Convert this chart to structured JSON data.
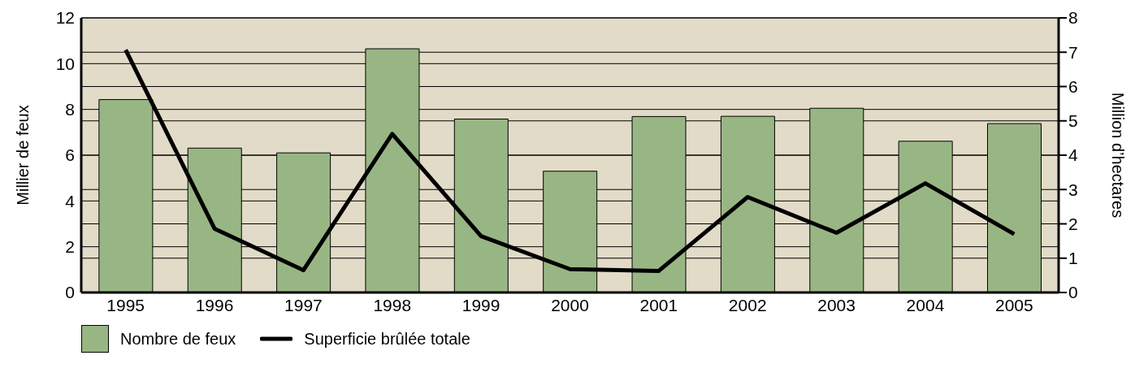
{
  "chart_data": {
    "type": "bar",
    "xlabel": null,
    "ylabel": "Millier de feux",
    "y2label": "Million d’hectares",
    "categories": [
      "1995",
      "1996",
      "1997",
      "1998",
      "1999",
      "2000",
      "2001",
      "2002",
      "2003",
      "2004",
      "2005"
    ],
    "series": [
      {
        "name": "Nombre de feux",
        "color": "#98b683",
        "values": [
          8.43,
          6.31,
          6.1,
          10.65,
          7.58,
          5.3,
          7.69,
          7.7,
          8.05,
          6.61,
          7.38
        ]
      },
      {
        "name": "Superficie brûlée totale",
        "type": "line",
        "axis": "y2",
        "color": "#000000",
        "values": [
          7.07,
          1.86,
          0.65,
          4.62,
          1.64,
          0.68,
          0.63,
          2.78,
          1.74,
          3.18,
          1.7
        ]
      }
    ],
    "ylim": [
      0,
      12
    ],
    "yticks": [
      0,
      2,
      4,
      6,
      8,
      10,
      12
    ],
    "y2lim": [
      0,
      8
    ],
    "y2ticks": [
      0,
      1,
      2,
      3,
      4,
      5,
      6,
      7,
      8
    ],
    "grid": true,
    "legend": "bottom left",
    "marker": "none",
    "line_style": "solid"
  }
}
